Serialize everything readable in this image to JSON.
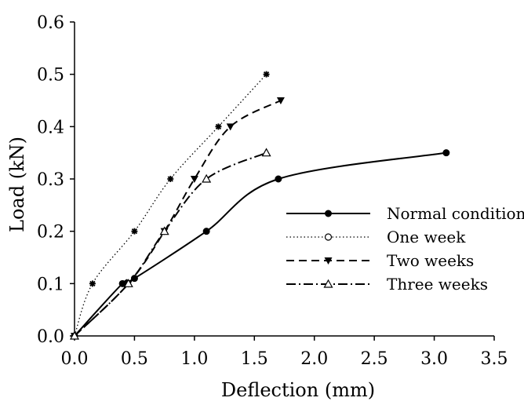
{
  "chart_data": {
    "type": "line",
    "title": "",
    "xlabel": "Deflection (mm)",
    "ylabel": "Load (kN)",
    "xlim": [
      0,
      3.5
    ],
    "ylim": [
      0,
      0.6
    ],
    "xticks": [
      "0.0",
      "0.5",
      "1.0",
      "1.5",
      "2.0",
      "2.5",
      "3.0",
      "3.5"
    ],
    "yticks": [
      "0.0",
      "0.1",
      "0.2",
      "0.3",
      "0.4",
      "0.5",
      "0.6"
    ],
    "grid": false,
    "legend_position": "right",
    "series": [
      {
        "name": "Normal condition",
        "style": "solid",
        "marker": "filled-circle",
        "color": "#000000",
        "points": [
          [
            0,
            0
          ],
          [
            0.4,
            0.1
          ],
          [
            0.5,
            0.11
          ],
          [
            1.1,
            0.2
          ],
          [
            1.7,
            0.3
          ],
          [
            3.1,
            0.35
          ]
        ]
      },
      {
        "name": "One week",
        "style": "dotted",
        "marker": "star",
        "legend_marker": "open-circle",
        "color": "#000000",
        "points": [
          [
            0,
            0
          ],
          [
            0.15,
            0.1
          ],
          [
            0.5,
            0.2
          ],
          [
            0.8,
            0.3
          ],
          [
            1.2,
            0.4
          ],
          [
            1.6,
            0.5
          ]
        ]
      },
      {
        "name": "Two weeks",
        "style": "dashed",
        "marker": "filled-triangle-down",
        "color": "#000000",
        "points": [
          [
            0,
            0
          ],
          [
            0.45,
            0.1
          ],
          [
            0.75,
            0.2
          ],
          [
            1.0,
            0.3
          ],
          [
            1.3,
            0.4
          ],
          [
            1.72,
            0.45
          ]
        ]
      },
      {
        "name": "Three weeks",
        "style": "dash-dot",
        "marker": "open-triangle",
        "color": "#000000",
        "points": [
          [
            0,
            0
          ],
          [
            0.45,
            0.1
          ],
          [
            0.75,
            0.2
          ],
          [
            1.1,
            0.3
          ],
          [
            1.6,
            0.35
          ]
        ]
      }
    ]
  }
}
